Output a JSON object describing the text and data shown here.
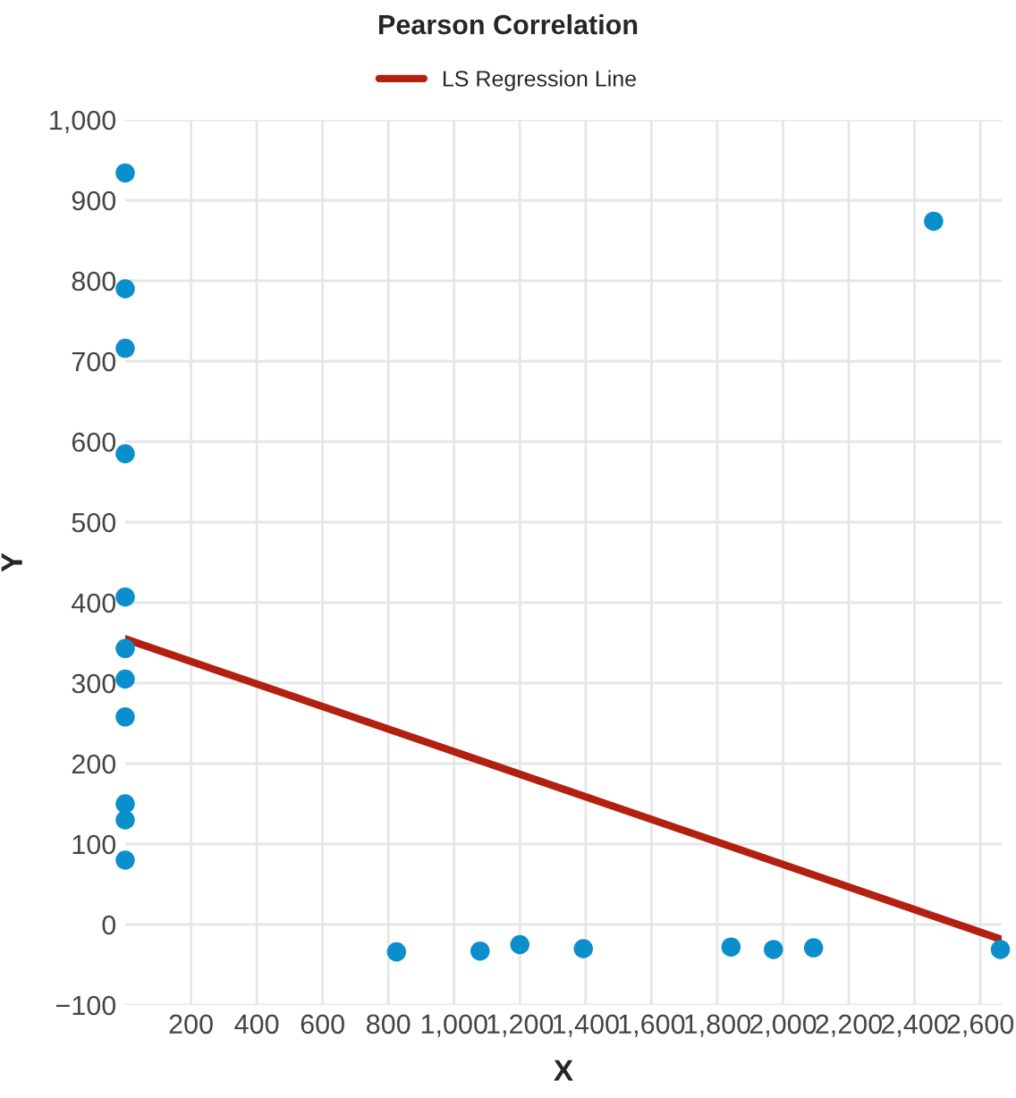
{
  "chart_data": {
    "type": "scatter",
    "title": "Pearson Correlation",
    "xlabel": "X",
    "ylabel": "Y",
    "xlim": [
      0,
      2665
    ],
    "ylim": [
      -100,
      1000
    ],
    "xticks": [
      200,
      400,
      600,
      800,
      {
        "value": 1000,
        "label": "1,000"
      },
      {
        "value": 1200,
        "label": "1,200"
      },
      {
        "value": 1400,
        "label": "1,400"
      },
      {
        "value": 1600,
        "label": "1,600"
      },
      {
        "value": 1800,
        "label": "1,800"
      },
      {
        "value": 2000,
        "label": "2,000"
      },
      {
        "value": 2200,
        "label": "2,200"
      },
      {
        "value": 2400,
        "label": "2,400"
      },
      {
        "value": 2600,
        "label": "2,600"
      }
    ],
    "yticks": [
      {
        "value": -100,
        "label": "−100"
      },
      0,
      100,
      200,
      300,
      400,
      500,
      600,
      700,
      800,
      900,
      {
        "value": 1000,
        "label": "1,000"
      }
    ],
    "grid": true,
    "legend": "top",
    "series": [
      {
        "marker": "circle",
        "color": "#0a8fcc",
        "x": [
          0,
          0,
          0,
          0,
          0,
          0,
          0,
          0,
          0,
          0,
          0,
          825,
          1079,
          1200,
          1393,
          1842,
          1971,
          2093,
          2661,
          2458
        ],
        "values": [
          934,
          790,
          716,
          585,
          407,
          343,
          305,
          258,
          150,
          130,
          80,
          -34,
          -33,
          -25,
          -30,
          -28,
          -31,
          -29,
          -31,
          874
        ]
      },
      {
        "type": "line",
        "name": "LS Regression Line",
        "color": "#b22010",
        "x": [
          0,
          2661
        ],
        "values": [
          355,
          -18
        ]
      }
    ]
  }
}
